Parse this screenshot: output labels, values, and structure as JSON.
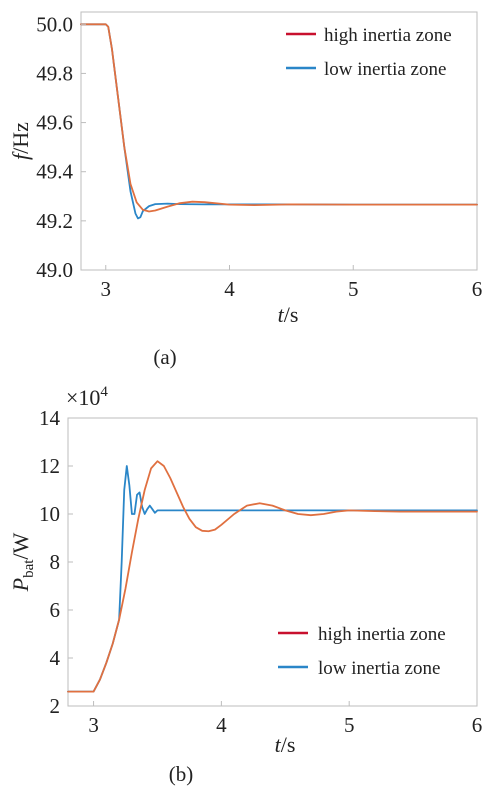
{
  "chart_data": [
    {
      "type": "line",
      "caption": "(a)",
      "ylabel": {
        "main": "f",
        "unit": "/Hz"
      },
      "xlabel": {
        "main": "t",
        "unit": "/s"
      },
      "xlim": [
        2.8,
        6.0
      ],
      "ylim": [
        49.0,
        50.05
      ],
      "xticks": [
        3,
        4,
        5,
        6
      ],
      "yticks": [
        "49.0",
        "49.2",
        "49.4",
        "49.6",
        "49.8",
        "50.0"
      ],
      "ytick_values": [
        49.0,
        49.2,
        49.4,
        49.6,
        49.8,
        50.0
      ],
      "grid": false,
      "legend": "top-right",
      "colors": {
        "high": "#e07040",
        "low": "#2a86c8",
        "legend_high_line": "#c8102e"
      },
      "series": [
        {
          "name": "high inertia zone",
          "x": [
            2.8,
            3.0,
            3.02,
            3.05,
            3.1,
            3.15,
            3.2,
            3.25,
            3.3,
            3.35,
            3.4,
            3.5,
            3.6,
            3.7,
            3.8,
            3.9,
            4.0,
            4.2,
            4.5,
            5.0,
            5.5,
            6.0
          ],
          "y": [
            50.0,
            50.0,
            49.99,
            49.9,
            49.7,
            49.5,
            49.35,
            49.275,
            49.245,
            49.238,
            49.242,
            49.258,
            49.272,
            49.278,
            49.276,
            49.271,
            49.266,
            49.264,
            49.267,
            49.266,
            49.266,
            49.266
          ]
        },
        {
          "name": "low inertia zone",
          "x": [
            2.8,
            3.0,
            3.02,
            3.05,
            3.1,
            3.15,
            3.2,
            3.24,
            3.26,
            3.28,
            3.3,
            3.35,
            3.4,
            3.5,
            3.6,
            3.8,
            4.0,
            4.5,
            5.0,
            5.5,
            6.0
          ],
          "y": [
            50.0,
            50.0,
            49.99,
            49.9,
            49.7,
            49.5,
            49.32,
            49.23,
            49.21,
            49.215,
            49.24,
            49.26,
            49.268,
            49.27,
            49.268,
            49.267,
            49.267,
            49.267,
            49.266,
            49.266,
            49.266
          ]
        }
      ]
    },
    {
      "type": "line",
      "caption": "(b)",
      "multiplier": "×10",
      "multiplier_exp": "4",
      "ylabel": {
        "main": "P",
        "sub": "bat",
        "unit": "/W"
      },
      "xlabel": {
        "main": "t",
        "unit": "/s"
      },
      "xlim": [
        2.8,
        6.0
      ],
      "ylim": [
        2.0,
        14.0
      ],
      "xticks": [
        3,
        4,
        5,
        6
      ],
      "yticks": [
        "2",
        "4",
        "6",
        "8",
        "10",
        "12",
        "14"
      ],
      "ytick_values": [
        2,
        4,
        6,
        8,
        10,
        12,
        14
      ],
      "grid": false,
      "legend": "bottom-right",
      "colors": {
        "high": "#e07040",
        "low": "#2a86c8",
        "legend_high_line": "#c8102e"
      },
      "series": [
        {
          "name": "high inertia zone",
          "x": [
            2.8,
            3.0,
            3.05,
            3.1,
            3.15,
            3.2,
            3.25,
            3.3,
            3.35,
            3.4,
            3.45,
            3.5,
            3.55,
            3.6,
            3.65,
            3.7,
            3.75,
            3.8,
            3.85,
            3.9,
            3.95,
            4.0,
            4.1,
            4.2,
            4.3,
            4.4,
            4.5,
            4.6,
            4.7,
            4.8,
            4.9,
            5.0,
            5.2,
            5.4,
            5.6,
            6.0
          ],
          "y": [
            2.6,
            2.6,
            3.1,
            3.8,
            4.6,
            5.6,
            6.9,
            8.4,
            9.8,
            11.0,
            11.9,
            12.2,
            12.0,
            11.5,
            10.9,
            10.3,
            9.8,
            9.45,
            9.3,
            9.28,
            9.35,
            9.55,
            10.0,
            10.35,
            10.45,
            10.35,
            10.15,
            10.0,
            9.95,
            10.0,
            10.1,
            10.15,
            10.12,
            10.1,
            10.1,
            10.1
          ]
        },
        {
          "name": "low inertia zone",
          "x": [
            2.8,
            3.0,
            3.05,
            3.1,
            3.15,
            3.2,
            3.22,
            3.24,
            3.26,
            3.28,
            3.3,
            3.32,
            3.34,
            3.36,
            3.38,
            3.4,
            3.42,
            3.44,
            3.46,
            3.48,
            3.5,
            3.55,
            3.6,
            4.0,
            4.5,
            5.0,
            6.0
          ],
          "y": [
            2.6,
            2.6,
            3.1,
            3.8,
            4.6,
            5.6,
            8.0,
            11.0,
            12.0,
            11.2,
            10.0,
            10.0,
            10.8,
            10.9,
            10.3,
            10.0,
            10.2,
            10.35,
            10.2,
            10.05,
            10.15,
            10.15,
            10.15,
            10.15,
            10.15,
            10.15,
            10.15
          ]
        }
      ]
    }
  ]
}
